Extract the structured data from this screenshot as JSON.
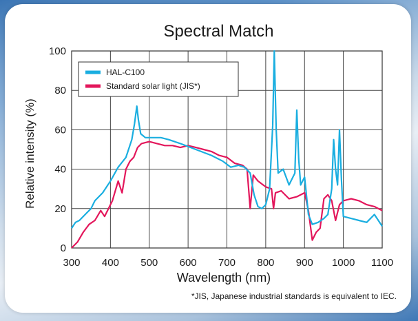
{
  "chart_data": {
    "type": "line",
    "title": "Spectral Match",
    "xlabel": "Wavelength (nm)",
    "ylabel": "Relative intensity (%)",
    "xlim": [
      300,
      1100
    ],
    "ylim": [
      0,
      100
    ],
    "x_ticks": [
      "300",
      "400",
      "500",
      "600",
      "700",
      "800",
      "900",
      "1000",
      "1100"
    ],
    "y_ticks": [
      "0",
      "20",
      "40",
      "60",
      "80",
      "100"
    ],
    "grid": true,
    "legend_position": "top-left",
    "series": [
      {
        "name": "HAL-C100",
        "color": "#1aaee0",
        "points": [
          [
            300,
            10
          ],
          [
            310,
            13
          ],
          [
            320,
            14
          ],
          [
            340,
            18
          ],
          [
            350,
            20
          ],
          [
            360,
            24
          ],
          [
            380,
            28
          ],
          [
            400,
            34
          ],
          [
            420,
            41
          ],
          [
            440,
            46
          ],
          [
            455,
            55
          ],
          [
            462,
            63
          ],
          [
            468,
            72
          ],
          [
            472,
            65
          ],
          [
            478,
            58
          ],
          [
            490,
            56
          ],
          [
            510,
            56
          ],
          [
            530,
            56
          ],
          [
            550,
            55
          ],
          [
            580,
            53
          ],
          [
            620,
            50
          ],
          [
            660,
            47
          ],
          [
            690,
            44
          ],
          [
            710,
            41
          ],
          [
            730,
            42
          ],
          [
            745,
            41
          ],
          [
            760,
            38
          ],
          [
            770,
            27
          ],
          [
            780,
            21
          ],
          [
            790,
            20
          ],
          [
            800,
            22
          ],
          [
            810,
            30
          ],
          [
            818,
            62
          ],
          [
            822,
            100
          ],
          [
            827,
            60
          ],
          [
            832,
            38
          ],
          [
            845,
            40
          ],
          [
            860,
            32
          ],
          [
            875,
            38
          ],
          [
            880,
            70
          ],
          [
            885,
            45
          ],
          [
            890,
            32
          ],
          [
            900,
            36
          ],
          [
            910,
            17
          ],
          [
            920,
            12
          ],
          [
            935,
            13
          ],
          [
            950,
            15
          ],
          [
            960,
            17
          ],
          [
            970,
            30
          ],
          [
            975,
            55
          ],
          [
            980,
            40
          ],
          [
            985,
            32
          ],
          [
            990,
            60
          ],
          [
            995,
            35
          ],
          [
            1000,
            16
          ],
          [
            1020,
            15
          ],
          [
            1040,
            14
          ],
          [
            1060,
            13
          ],
          [
            1080,
            17
          ],
          [
            1090,
            14
          ],
          [
            1100,
            11
          ]
        ]
      },
      {
        "name": "Standard solar light (JIS*)",
        "color": "#e3165b",
        "points": [
          [
            300,
            0
          ],
          [
            315,
            3
          ],
          [
            330,
            8
          ],
          [
            345,
            12
          ],
          [
            360,
            14
          ],
          [
            375,
            19
          ],
          [
            385,
            16
          ],
          [
            395,
            20
          ],
          [
            405,
            24
          ],
          [
            420,
            34
          ],
          [
            430,
            28
          ],
          [
            440,
            40
          ],
          [
            450,
            44
          ],
          [
            460,
            46
          ],
          [
            470,
            51
          ],
          [
            480,
            53
          ],
          [
            500,
            54
          ],
          [
            520,
            53
          ],
          [
            540,
            52
          ],
          [
            560,
            52
          ],
          [
            580,
            51
          ],
          [
            600,
            52
          ],
          [
            620,
            51
          ],
          [
            640,
            50
          ],
          [
            660,
            49
          ],
          [
            680,
            47
          ],
          [
            700,
            46
          ],
          [
            720,
            43
          ],
          [
            740,
            42
          ],
          [
            752,
            40
          ],
          [
            760,
            20
          ],
          [
            768,
            37
          ],
          [
            780,
            34
          ],
          [
            800,
            31
          ],
          [
            815,
            30
          ],
          [
            820,
            20
          ],
          [
            825,
            28
          ],
          [
            840,
            29
          ],
          [
            860,
            25
          ],
          [
            880,
            26
          ],
          [
            900,
            28
          ],
          [
            910,
            19
          ],
          [
            920,
            4
          ],
          [
            930,
            8
          ],
          [
            940,
            10
          ],
          [
            950,
            25
          ],
          [
            960,
            27
          ],
          [
            970,
            24
          ],
          [
            980,
            14
          ],
          [
            990,
            22
          ],
          [
            1000,
            24
          ],
          [
            1020,
            25
          ],
          [
            1040,
            24
          ],
          [
            1060,
            22
          ],
          [
            1080,
            21
          ],
          [
            1100,
            19
          ]
        ]
      }
    ]
  },
  "footnote": "*JIS, Japanese industrial standards is equivalent to IEC."
}
